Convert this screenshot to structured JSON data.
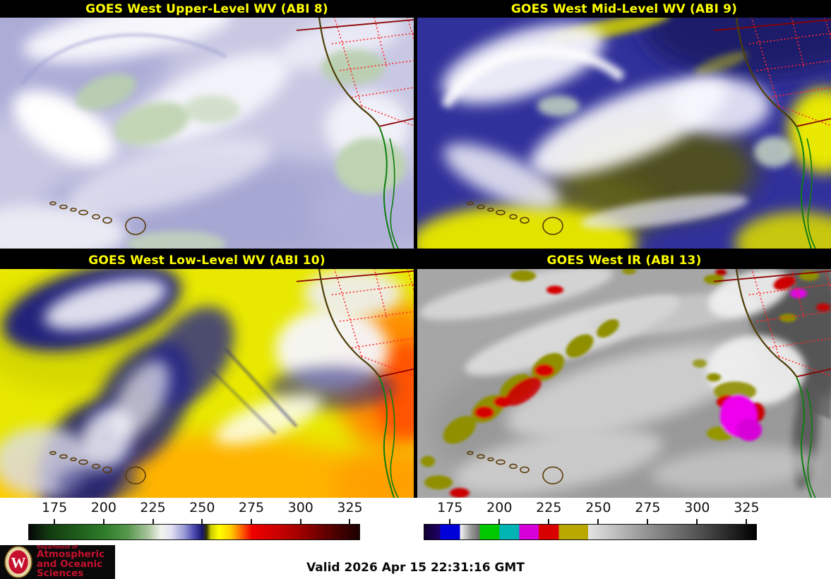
{
  "panels": [
    {
      "key": "abi8",
      "title": "GOES West Upper-Level WV (ABI 8)"
    },
    {
      "key": "abi9",
      "title": "GOES West Mid-Level WV (ABI 9)"
    },
    {
      "key": "abi10",
      "title": "GOES West Low-Level WV (ABI 10)"
    },
    {
      "key": "abi13",
      "title": "GOES West IR (ABI 13)"
    }
  ],
  "colorbars": [
    {
      "key": "wv",
      "description": "water-vapor brightness-temperature scale (K)",
      "tick_values": [
        175,
        200,
        225,
        250,
        275,
        300,
        325
      ],
      "range": [
        161.7,
        330.2
      ],
      "stops": [
        [
          "#060606",
          0
        ],
        [
          "#123a10",
          6
        ],
        [
          "#1e5a1a",
          14
        ],
        [
          "#2e7d2a",
          23
        ],
        [
          "#58984e",
          30
        ],
        [
          "#a8c49c",
          36
        ],
        [
          "#f2f4ee",
          40
        ],
        [
          "#e2e2f2",
          43
        ],
        [
          "#9a9ad6",
          47
        ],
        [
          "#4a4ab0",
          50
        ],
        [
          "#16166e",
          52.5
        ],
        [
          "#3a3a00",
          53.8
        ],
        [
          "#c8c800",
          55
        ],
        [
          "#ffff00",
          57.5
        ],
        [
          "#ffd000",
          61
        ],
        [
          "#ff7000",
          64
        ],
        [
          "#f00000",
          67.5
        ],
        [
          "#cc0000",
          75
        ],
        [
          "#a00000",
          82
        ],
        [
          "#600000",
          90
        ],
        [
          "#1c0000",
          100
        ]
      ]
    },
    {
      "key": "ir",
      "description": "infrared brightness-temperature enhancement scale (K)",
      "tick_values": [
        175,
        200,
        225,
        250,
        275,
        300,
        325
      ],
      "range": [
        161.7,
        330.2
      ],
      "stops": [
        [
          "#100030",
          0
        ],
        [
          "#20006a",
          4.8
        ],
        [
          "#0000d8",
          4.81
        ],
        [
          "#0000d8",
          10.7
        ],
        [
          "#f8f8f8",
          10.71
        ],
        [
          "#9a9a9a",
          14
        ],
        [
          "#6a6a6a",
          16.7
        ],
        [
          "#00c800",
          16.71
        ],
        [
          "#00c800",
          22.6
        ],
        [
          "#00b4b4",
          22.61
        ],
        [
          "#00b4b4",
          28.6
        ],
        [
          "#d800d8",
          28.61
        ],
        [
          "#d800d8",
          34.5
        ],
        [
          "#d80000",
          34.51
        ],
        [
          "#d80000",
          40.5
        ],
        [
          "#b8a800",
          40.51
        ],
        [
          "#b8a800",
          49.4
        ],
        [
          "#e4e4e4",
          49.41
        ],
        [
          "#9c9c9c",
          65
        ],
        [
          "#555555",
          82
        ],
        [
          "#000000",
          100
        ]
      ]
    }
  ],
  "footer": {
    "valid_time": "Valid 2026 Apr 15 22:31:16 GMT"
  },
  "logo": {
    "dept_line": "Department of",
    "name_line1": "Atmospheric",
    "name_line2": "and Oceanic Sciences",
    "monogram": "W"
  },
  "colors": {
    "panel_title": "#ffff00",
    "tick_text": "#111111",
    "valid_text": "#0a0a0a",
    "logo_bg": "#0a0a0a",
    "logo_text": "#c5102e",
    "map_coast": "#4e3e08",
    "map_border_dotted": "#ff2828",
    "map_border_solid": "#8b0000",
    "map_mexico_green": "#0f7d0f",
    "hawaii_outline": "#5a3c08"
  }
}
